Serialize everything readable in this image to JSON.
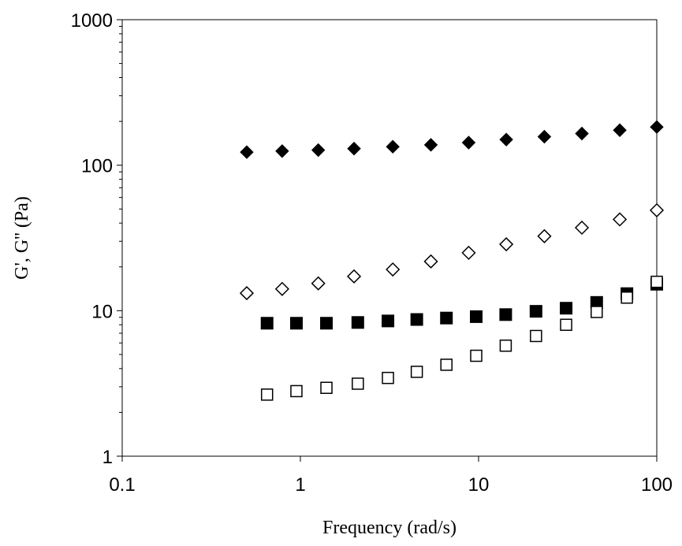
{
  "chart_data": {
    "type": "scatter",
    "title": "",
    "xlabel": "Frequency (rad/s)",
    "ylabel": "G', G'' (Pa)",
    "xscale": "log",
    "yscale": "log",
    "xlim": [
      0.1,
      100
    ],
    "ylim": [
      1,
      1000
    ],
    "x_tick_labels": [
      "0.1",
      "1",
      "10",
      "100"
    ],
    "y_tick_labels": [
      "1",
      "10",
      "100",
      "1000"
    ],
    "grid": false,
    "legend": "none",
    "series": [
      {
        "marker": "diamond-filled",
        "color": "#000000",
        "x": [
          0.5,
          0.79,
          1.26,
          2.0,
          3.3,
          5.4,
          8.8,
          14.3,
          23.4,
          38,
          62,
          100
        ],
        "y": [
          123,
          125,
          127,
          130,
          134,
          138,
          143,
          150,
          157,
          165,
          174,
          183
        ]
      },
      {
        "marker": "diamond-open",
        "color": "#000000",
        "x": [
          0.5,
          0.79,
          1.26,
          2.0,
          3.3,
          5.4,
          8.8,
          14.3,
          23.4,
          38,
          62,
          100
        ],
        "y": [
          13.2,
          14.1,
          15.4,
          17.2,
          19.2,
          21.8,
          25.0,
          28.6,
          32.5,
          37.2,
          42.4,
          49.0
        ]
      },
      {
        "marker": "square-filled",
        "color": "#000000",
        "x": [
          0.65,
          0.95,
          1.4,
          2.1,
          3.1,
          4.5,
          6.6,
          9.7,
          14.2,
          21,
          31,
          46,
          68,
          100
        ],
        "y": [
          8.2,
          8.2,
          8.2,
          8.3,
          8.5,
          8.7,
          8.9,
          9.1,
          9.4,
          9.9,
          10.4,
          11.4,
          13.1,
          15.2
        ]
      },
      {
        "marker": "square-open",
        "color": "#000000",
        "x": [
          0.65,
          0.95,
          1.4,
          2.1,
          3.1,
          4.5,
          6.6,
          9.7,
          14.2,
          21,
          31,
          46,
          68,
          100
        ],
        "y": [
          2.65,
          2.8,
          2.95,
          3.15,
          3.45,
          3.8,
          4.25,
          4.9,
          5.75,
          6.7,
          8.0,
          9.8,
          12.3,
          15.8
        ]
      }
    ]
  }
}
